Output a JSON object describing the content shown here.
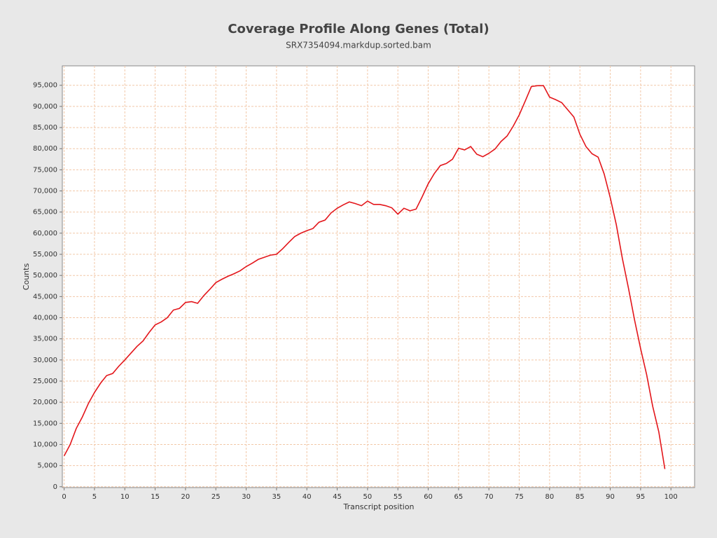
{
  "chart_data": {
    "type": "line",
    "title": "Coverage Profile Along Genes (Total)",
    "subtitle": "SRX7354094.markdup.sorted.bam",
    "x_label": "Transcript position",
    "y_label": "Counts",
    "color": "#e3161b",
    "grid": true,
    "x": [
      0,
      1,
      2,
      3,
      4,
      5,
      6,
      7,
      8,
      9,
      10,
      11,
      12,
      13,
      14,
      15,
      16,
      17,
      18,
      19,
      20,
      21,
      22,
      23,
      24,
      25,
      26,
      27,
      28,
      29,
      30,
      31,
      32,
      33,
      34,
      35,
      36,
      37,
      38,
      39,
      40,
      41,
      42,
      43,
      44,
      45,
      46,
      47,
      48,
      49,
      50,
      51,
      52,
      53,
      54,
      55,
      56,
      57,
      58,
      59,
      60,
      61,
      62,
      63,
      64,
      65,
      66,
      67,
      68,
      69,
      70,
      71,
      72,
      73,
      74,
      75,
      76,
      77,
      78,
      79,
      80,
      81,
      82,
      83,
      84,
      85,
      86,
      87,
      88,
      89,
      90,
      91,
      92,
      93,
      94,
      95,
      96,
      97,
      98,
      99
    ],
    "values": [
      7300,
      10000,
      13800,
      16500,
      19700,
      22300,
      24500,
      26300,
      26800,
      28500,
      30000,
      31600,
      33200,
      34500,
      36500,
      38300,
      39000,
      40000,
      41800,
      42200,
      43600,
      43800,
      43400,
      45200,
      46700,
      48300,
      49100,
      49800,
      50400,
      51100,
      52100,
      52900,
      53800,
      54300,
      54800,
      55000,
      56300,
      57800,
      59200,
      60000,
      60600,
      61100,
      62600,
      63100,
      64800,
      65900,
      66700,
      67400,
      67000,
      66500,
      67600,
      66800,
      66800,
      66500,
      66000,
      64500,
      65900,
      65300,
      65700,
      68600,
      71700,
      74100,
      76000,
      76500,
      77500,
      80100,
      79700,
      80500,
      78700,
      78100,
      78900,
      79900,
      81700,
      83000,
      85300,
      88000,
      91300,
      94700,
      94900,
      94900,
      92200,
      91600,
      90900,
      89200,
      87500,
      83400,
      80500,
      78800,
      78000,
      74000,
      68400,
      62000,
      54000,
      47000,
      39500,
      32700,
      26500,
      19000,
      13000,
      4200
    ],
    "xlim": [
      -0.3,
      103.9
    ],
    "ylim": [
      -200,
      99600
    ],
    "xticks": [
      0,
      5,
      10,
      15,
      20,
      25,
      30,
      35,
      40,
      45,
      50,
      55,
      60,
      65,
      70,
      75,
      80,
      85,
      90,
      95,
      100
    ],
    "yticks": [
      0,
      {
        "value": 5000,
        "label": "5,000"
      },
      {
        "value": 10000,
        "label": "10,000"
      },
      {
        "value": 15000,
        "label": "15,000"
      },
      {
        "value": 20000,
        "label": "20,000"
      },
      {
        "value": 25000,
        "label": "25,000"
      },
      {
        "value": 30000,
        "label": "30,000"
      },
      {
        "value": 35000,
        "label": "35,000"
      },
      {
        "value": 40000,
        "label": "40,000"
      },
      {
        "value": 45000,
        "label": "45,000"
      },
      {
        "value": 50000,
        "label": "50,000"
      },
      {
        "value": 55000,
        "label": "55,000"
      },
      {
        "value": 60000,
        "label": "60,000"
      },
      {
        "value": 65000,
        "label": "65,000"
      },
      {
        "value": 70000,
        "label": "70,000"
      },
      {
        "value": 75000,
        "label": "75,000"
      },
      {
        "value": 80000,
        "label": "80,000"
      },
      {
        "value": 85000,
        "label": "85,000"
      },
      {
        "value": 90000,
        "label": "90,000"
      },
      {
        "value": 95000,
        "label": "95,000"
      }
    ]
  }
}
